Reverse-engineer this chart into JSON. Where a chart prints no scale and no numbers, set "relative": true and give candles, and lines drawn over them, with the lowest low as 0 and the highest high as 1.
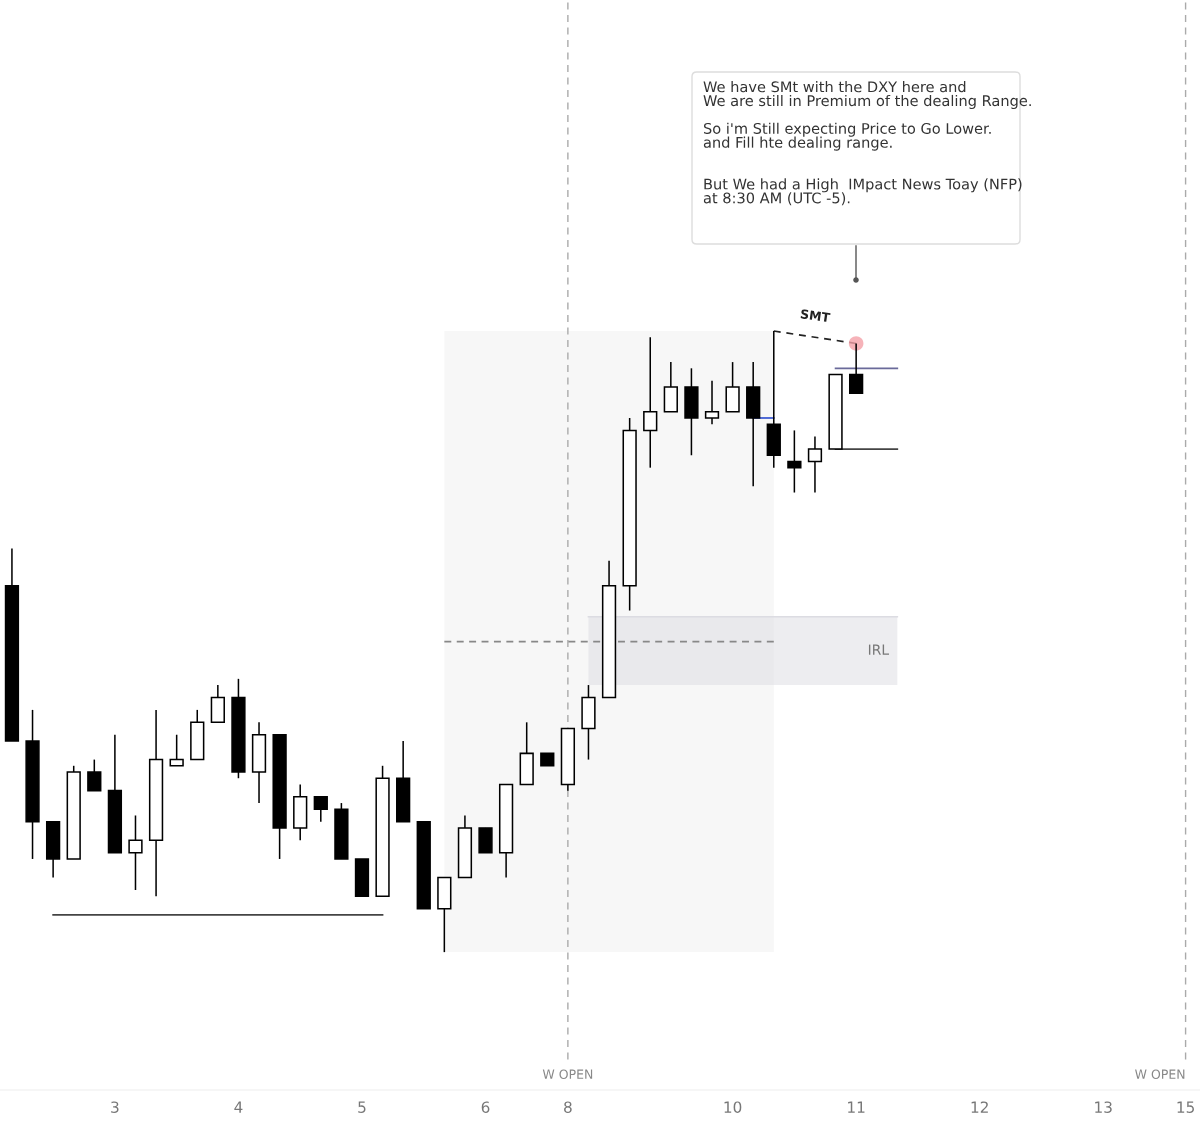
{
  "chart_data": {
    "type": "candlestick",
    "relative": true,
    "categories": [
      null,
      null,
      null,
      null,
      null,
      "3",
      null,
      null,
      null,
      null,
      null,
      "4",
      null,
      null,
      null,
      null,
      null,
      "5",
      null,
      null,
      null,
      null,
      null,
      "6",
      null,
      null,
      null,
      "8",
      null,
      null,
      null,
      null,
      null,
      null,
      null,
      "10",
      null,
      null,
      null,
      null,
      null,
      "11",
      null,
      null,
      null,
      null,
      null,
      "12",
      null,
      null,
      null,
      null,
      null,
      "13",
      null,
      null,
      null,
      "15"
    ],
    "ohlc": [
      [
        0.59,
        0.65,
        0.34,
        0.34
      ],
      [
        0.34,
        0.39,
        0.15,
        0.21
      ],
      [
        0.21,
        0.21,
        0.12,
        0.15
      ],
      [
        0.15,
        0.3,
        0.15,
        0.29
      ],
      [
        0.29,
        0.31,
        0.26,
        0.26
      ],
      [
        0.26,
        0.35,
        0.16,
        0.16
      ],
      [
        0.16,
        0.22,
        0.1,
        0.18
      ],
      [
        0.18,
        0.39,
        0.09,
        0.31
      ],
      [
        0.3,
        0.35,
        0.3,
        0.31
      ],
      [
        0.31,
        0.39,
        0.31,
        0.37
      ],
      [
        0.37,
        0.43,
        0.37,
        0.41
      ],
      [
        0.41,
        0.44,
        0.28,
        0.29
      ],
      [
        0.29,
        0.37,
        0.24,
        0.35
      ],
      [
        0.35,
        0.35,
        0.15,
        0.2
      ],
      [
        0.2,
        0.27,
        0.18,
        0.25
      ],
      [
        0.25,
        0.25,
        0.21,
        0.23
      ],
      [
        0.23,
        0.24,
        0.15,
        0.15
      ],
      [
        0.15,
        0.15,
        0.09,
        0.09
      ],
      [
        0.09,
        0.3,
        0.09,
        0.28
      ],
      [
        0.28,
        0.34,
        0.21,
        0.21
      ],
      [
        0.21,
        0.21,
        0.07,
        0.07
      ],
      [
        0.07,
        0.12,
        0,
        0.12
      ],
      [
        0.12,
        0.22,
        0.12,
        0.2
      ],
      [
        0.2,
        0.2,
        0.16,
        0.16
      ],
      [
        0.16,
        0.27,
        0.12,
        0.27
      ],
      [
        0.27,
        0.37,
        0.27,
        0.32
      ],
      [
        0.32,
        0.32,
        0.3,
        0.3
      ],
      [
        0.27,
        0.36,
        0.26,
        0.36
      ],
      [
        0.36,
        0.43,
        0.31,
        0.41
      ],
      [
        0.41,
        0.63,
        0.41,
        0.59
      ],
      [
        0.59,
        0.86,
        0.55,
        0.84
      ],
      [
        0.84,
        0.99,
        0.78,
        0.87
      ],
      [
        0.87,
        0.95,
        0.87,
        0.91
      ],
      [
        0.91,
        0.94,
        0.8,
        0.86
      ],
      [
        0.86,
        0.92,
        0.85,
        0.87
      ],
      [
        0.87,
        0.95,
        0.87,
        0.91
      ],
      [
        0.91,
        0.95,
        0.75,
        0.86
      ],
      [
        0.85,
        1,
        0.78,
        0.8
      ],
      [
        0.79,
        0.84,
        0.74,
        0.78
      ],
      [
        0.79,
        0.83,
        0.74,
        0.81
      ],
      [
        0.81,
        0.93,
        0.81,
        0.93
      ],
      [
        0.93,
        0.98,
        0.9,
        0.9
      ],
      null,
      null,
      null,
      null,
      null,
      null,
      null,
      null,
      null,
      null,
      null,
      null,
      null,
      null,
      null,
      null
    ],
    "series": [
      {
        "type": "area",
        "color": "#f7f7f7",
        "values": [
          null,
          null,
          null,
          null,
          null,
          null,
          null,
          null,
          null,
          null,
          null,
          null,
          null,
          null,
          null,
          null,
          null,
          null,
          null,
          null,
          null,
          1,
          null,
          null,
          null,
          null,
          null,
          null,
          null,
          null,
          null,
          null,
          null,
          null,
          null,
          null,
          null,
          1,
          null,
          null,
          null,
          null,
          null,
          null,
          null,
          null,
          null,
          null,
          null,
          null,
          null,
          null,
          null,
          null,
          null,
          null,
          null,
          null
        ]
      },
      {
        "type": "line",
        "color": "#dcdce2",
        "values": [
          null,
          null,
          null,
          null,
          null,
          null,
          null,
          null,
          null,
          null,
          null,
          null,
          null,
          null,
          null,
          null,
          null,
          null,
          null,
          null,
          null,
          null,
          null,
          null,
          null,
          null,
          null,
          null,
          0.54,
          null,
          null,
          null,
          null,
          null,
          null,
          null,
          null,
          null,
          null,
          null,
          null,
          null,
          null,
          0.54,
          null,
          null,
          null,
          null,
          null,
          null,
          null,
          null,
          null,
          null,
          null,
          null,
          null,
          null
        ],
        "upper": [
          null,
          null,
          null,
          null,
          null,
          null,
          null,
          null,
          null,
          null,
          null,
          null,
          null,
          null,
          null,
          null,
          null,
          null,
          null,
          null,
          null,
          null,
          null,
          null,
          null,
          null,
          null,
          null,
          0.54,
          null,
          null,
          null,
          null,
          null,
          null,
          null,
          null,
          null,
          null,
          null,
          null,
          null,
          null,
          0.54,
          null,
          null,
          null,
          null,
          null,
          null,
          null,
          null,
          null,
          null,
          null,
          null,
          null,
          null
        ],
        "lower": [
          null,
          null,
          null,
          null,
          null,
          null,
          null,
          null,
          null,
          null,
          null,
          null,
          null,
          null,
          null,
          null,
          null,
          null,
          null,
          null,
          null,
          null,
          null,
          null,
          null,
          null,
          null,
          null,
          0.43,
          null,
          null,
          null,
          null,
          null,
          null,
          null,
          null,
          null,
          null,
          null,
          null,
          null,
          null,
          0.43,
          null,
          null,
          null,
          null,
          null,
          null,
          null,
          null,
          null,
          null,
          null,
          null,
          null,
          null
        ]
      },
      {
        "type": "line",
        "color": "#888888",
        "line_style": "dashed",
        "values": [
          null,
          null,
          null,
          null,
          null,
          null,
          null,
          null,
          null,
          null,
          null,
          null,
          null,
          null,
          null,
          null,
          null,
          null,
          null,
          null,
          null,
          0.5,
          null,
          null,
          null,
          null,
          null,
          null,
          null,
          null,
          null,
          null,
          null,
          null,
          null,
          null,
          null,
          0.5,
          null,
          null,
          null,
          null,
          null,
          null,
          null,
          null,
          null,
          null,
          null,
          null,
          null,
          null,
          null,
          null,
          null,
          null,
          null,
          null
        ]
      },
      {
        "type": "line",
        "color": "#444444",
        "values": [
          null,
          null,
          0.06,
          null,
          null,
          null,
          null,
          null,
          null,
          null,
          null,
          null,
          null,
          null,
          null,
          null,
          null,
          null,
          0.06,
          null,
          null,
          null,
          null,
          null,
          null,
          null,
          null,
          null,
          null,
          null,
          null,
          null,
          null,
          null,
          null,
          null,
          null,
          null,
          null,
          null,
          null,
          null,
          null,
          null,
          null,
          null,
          null,
          null,
          null,
          null,
          null,
          null,
          null,
          null,
          null,
          null,
          null,
          null
        ]
      },
      {
        "type": "line",
        "color": "#6a6a9a",
        "values": [
          null,
          null,
          null,
          null,
          null,
          null,
          null,
          null,
          null,
          null,
          null,
          null,
          null,
          null,
          null,
          null,
          null,
          null,
          null,
          null,
          null,
          null,
          null,
          null,
          null,
          null,
          null,
          null,
          null,
          null,
          null,
          null,
          null,
          null,
          null,
          null,
          null,
          null,
          null,
          null,
          0.94,
          null,
          null,
          0.94,
          null,
          null,
          null,
          null,
          null,
          null,
          null,
          null,
          null,
          null,
          null,
          null,
          null,
          null
        ]
      },
      {
        "type": "line",
        "color": "#444444",
        "values": [
          null,
          null,
          null,
          null,
          null,
          null,
          null,
          null,
          null,
          null,
          null,
          null,
          null,
          null,
          null,
          null,
          null,
          null,
          null,
          null,
          null,
          null,
          null,
          null,
          null,
          null,
          null,
          null,
          null,
          null,
          null,
          null,
          null,
          null,
          null,
          null,
          null,
          null,
          null,
          null,
          0.81,
          null,
          null,
          0.81,
          null,
          null,
          null,
          null,
          null,
          null,
          null,
          null,
          null,
          null,
          null,
          null,
          null,
          null
        ]
      },
      {
        "type": "line",
        "color": "#3050d0",
        "values": [
          null,
          null,
          null,
          null,
          null,
          null,
          null,
          null,
          null,
          null,
          null,
          null,
          null,
          null,
          null,
          null,
          null,
          null,
          null,
          null,
          null,
          null,
          null,
          null,
          null,
          null,
          null,
          null,
          null,
          null,
          null,
          null,
          null,
          null,
          null,
          null,
          0.86,
          0.86,
          null,
          null,
          null,
          null,
          null,
          null,
          null,
          null,
          null,
          null,
          null,
          null,
          null,
          null,
          null,
          null,
          null,
          null,
          null,
          null
        ]
      },
      {
        "type": "line",
        "color": "#222222",
        "line_style": "dashed",
        "values": [
          null,
          null,
          null,
          null,
          null,
          null,
          null,
          null,
          null,
          null,
          null,
          null,
          null,
          null,
          null,
          null,
          null,
          null,
          null,
          null,
          null,
          null,
          null,
          null,
          null,
          null,
          null,
          null,
          null,
          null,
          null,
          null,
          null,
          null,
          null,
          null,
          null,
          1,
          null,
          null,
          null,
          0.98,
          null,
          null,
          null,
          null,
          null,
          null,
          null,
          null,
          null,
          null,
          null,
          null,
          null,
          null,
          null,
          null
        ]
      },
      {
        "type": "scatter",
        "color": "#f4a0a8",
        "marker": "circle",
        "values": [
          null,
          null,
          null,
          null,
          null,
          null,
          null,
          null,
          null,
          null,
          null,
          null,
          null,
          null,
          null,
          null,
          null,
          null,
          null,
          null,
          null,
          null,
          null,
          null,
          null,
          null,
          null,
          null,
          null,
          null,
          null,
          null,
          null,
          null,
          null,
          null,
          null,
          null,
          null,
          null,
          null,
          0.98,
          null,
          null,
          null,
          null,
          null,
          null,
          null,
          null,
          null,
          null,
          null,
          null,
          null,
          null,
          null,
          null
        ]
      }
    ],
    "ref_lines": [
      {
        "axis": "x",
        "value": "8",
        "label": "W OPEN",
        "color": "#aaaaaa",
        "line_style": "dashed"
      },
      {
        "axis": "x",
        "value": "15",
        "label": "W OPEN",
        "color": "#aaaaaa",
        "line_style": "dashed"
      }
    ],
    "annotations": [
      "We have SMt with the DXY here and\nWe are still in Premium of the dealing Range.\n\nSo i'm Still expecting Price to Go Lower.\nand Fill hte dealing range.\n\n\nBut We had a High  IMpact News Toay (NFP)\nat 8:30 AM (UTC -5).",
      "SMT",
      "IRL"
    ],
    "grid": false
  }
}
